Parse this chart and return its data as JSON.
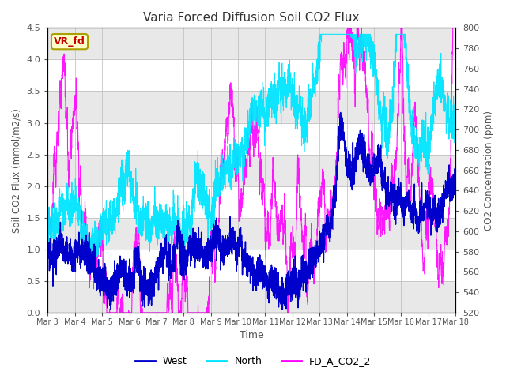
{
  "title": "Varia Forced Diffusion Soil CO2 Flux",
  "xlabel": "Time",
  "ylabel_left": "Soil CO2 Flux (mmol/m2/s)",
  "ylabel_right": "CO2 Concentration (ppm)",
  "ylim_left": [
    0.0,
    4.5
  ],
  "ylim_right": [
    520,
    800
  ],
  "yticks_left": [
    0.0,
    0.5,
    1.0,
    1.5,
    2.0,
    2.5,
    3.0,
    3.5,
    4.0,
    4.5
  ],
  "yticks_right": [
    520,
    540,
    560,
    580,
    600,
    620,
    640,
    660,
    680,
    700,
    720,
    740,
    760,
    780,
    800
  ],
  "xtick_labels": [
    "Mar 3",
    "Mar 4",
    "Mar 5",
    "Mar 6",
    "Mar 7",
    "Mar 8",
    "Mar 9",
    "Mar 10",
    "Mar 11",
    "Mar 12",
    "Mar 13",
    "Mar 14",
    "Mar 15",
    "Mar 16",
    "Mar 17",
    "Mar 18"
  ],
  "color_west": "#0000cd",
  "color_north": "#00e5ff",
  "color_co2": "#ff00ff",
  "legend_label_west": "West",
  "legend_label_north": "North",
  "legend_label_co2": "FD_A_CO2_2",
  "annotation_text": "VR_fd",
  "annotation_color": "#cc0000",
  "annotation_bg": "#ffffcc",
  "annotation_border": "#aaa000",
  "bg_color": "#e8e8e8",
  "white_stripe_ranges": [
    [
      0.5,
      1.0
    ],
    [
      1.5,
      2.0
    ],
    [
      2.5,
      3.0
    ],
    [
      3.5,
      4.0
    ]
  ],
  "n_points": 3600,
  "seed": 7
}
